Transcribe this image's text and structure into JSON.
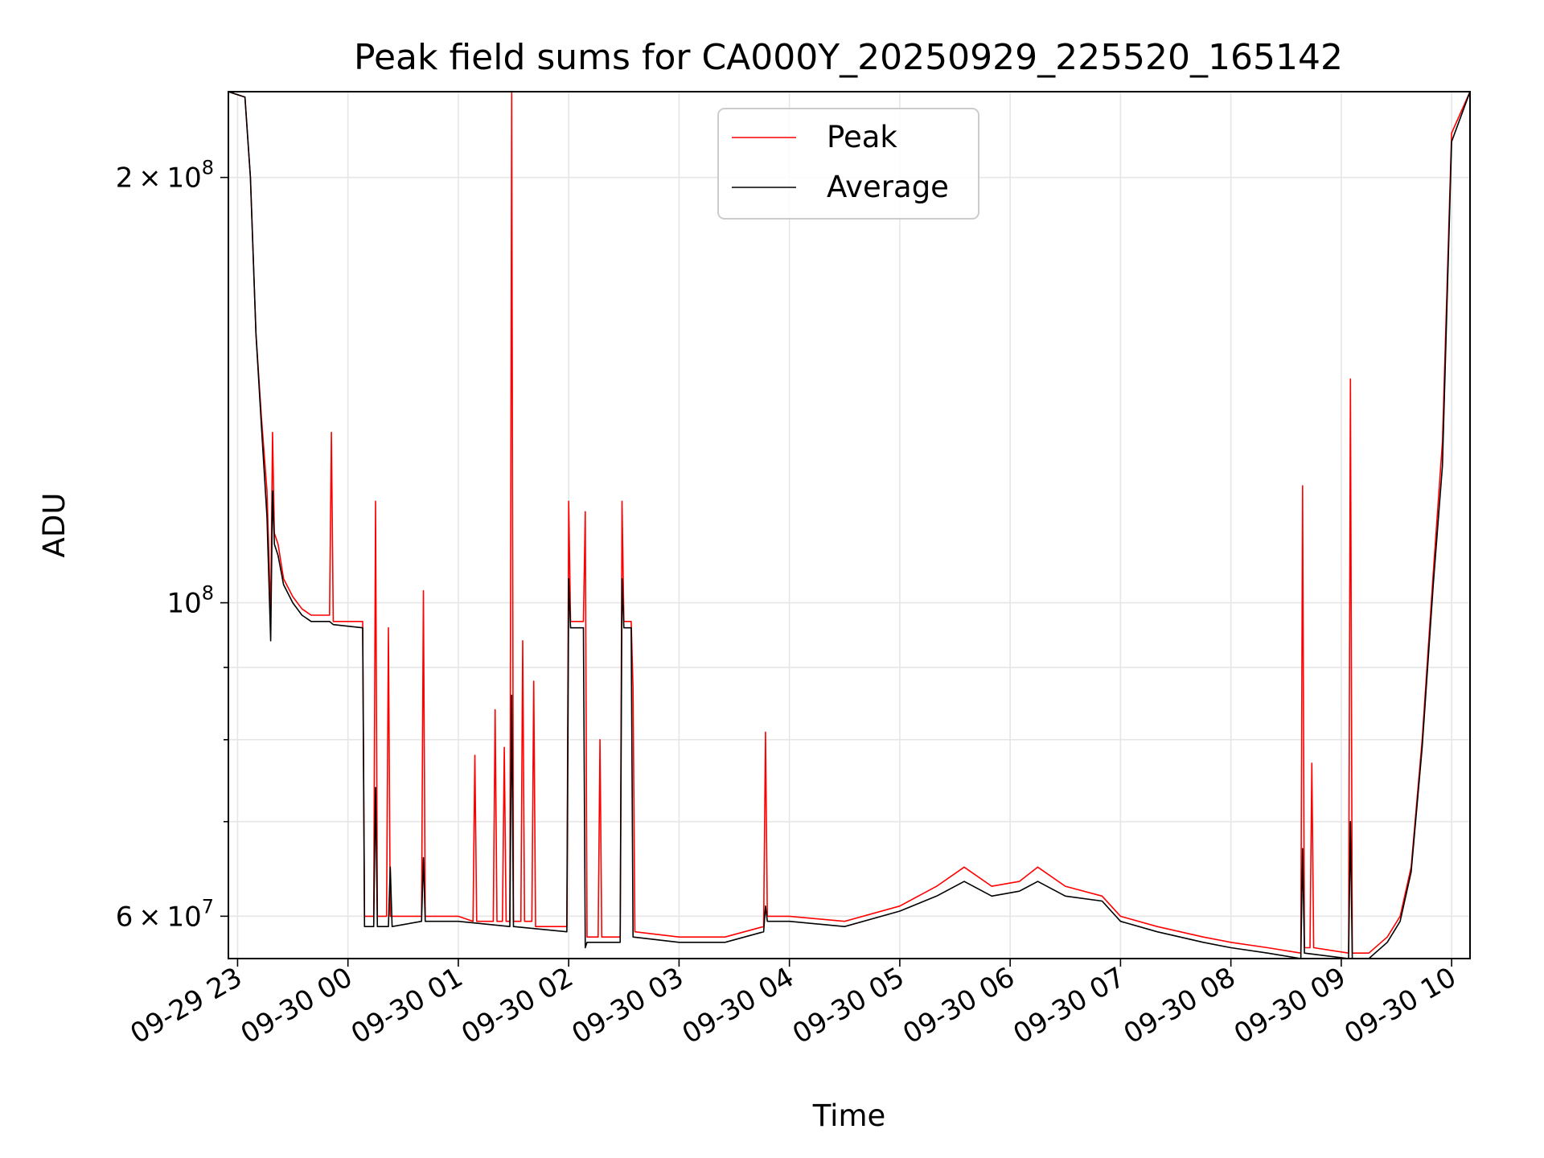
{
  "chart_data": {
    "type": "line",
    "title": "Peak field sums for CA000Y_20250929_225520_165142",
    "xlabel": "Time",
    "ylabel": "ADU",
    "yscale": "log",
    "grid": true,
    "legend_position": "top-center",
    "xlim": [
      "2025-09-29 22:55",
      "2025-09-30 10:10"
    ],
    "ylim": [
      56000000,
      230000000
    ],
    "x_ticks": [
      {
        "t": "2025-09-29 23:00",
        "label": "09-29 23"
      },
      {
        "t": "2025-09-30 00:00",
        "label": "09-30 00"
      },
      {
        "t": "2025-09-30 01:00",
        "label": "09-30 01"
      },
      {
        "t": "2025-09-30 02:00",
        "label": "09-30 02"
      },
      {
        "t": "2025-09-30 03:00",
        "label": "09-30 03"
      },
      {
        "t": "2025-09-30 04:00",
        "label": "09-30 04"
      },
      {
        "t": "2025-09-30 05:00",
        "label": "09-30 05"
      },
      {
        "t": "2025-09-30 06:00",
        "label": "09-30 06"
      },
      {
        "t": "2025-09-30 07:00",
        "label": "09-30 07"
      },
      {
        "t": "2025-09-30 08:00",
        "label": "09-30 08"
      },
      {
        "t": "2025-09-30 09:00",
        "label": "09-30 09"
      },
      {
        "t": "2025-09-30 10:00",
        "label": "09-30 10"
      }
    ],
    "y_major_ticks": [
      {
        "value": 60000000,
        "mantissa": "6",
        "exp": "7",
        "label_type": "mult"
      },
      {
        "value": 100000000,
        "mantissa": "10",
        "exp": "8",
        "label_type": "pow"
      },
      {
        "value": 200000000,
        "mantissa": "2",
        "exp": "8",
        "label_type": "mult"
      }
    ],
    "y_minor_ticks": [
      70000000,
      80000000,
      90000000
    ],
    "series": [
      {
        "name": "Peak",
        "color": "#ff0000",
        "points": [
          [
            "2025-09-29 22:55",
            230000000
          ],
          [
            "2025-09-29 23:04",
            228000000
          ],
          [
            "2025-09-29 23:07",
            200000000
          ],
          [
            "2025-09-29 23:10",
            155000000
          ],
          [
            "2025-09-29 23:13",
            135000000
          ],
          [
            "2025-09-29 23:16",
            120000000
          ],
          [
            "2025-09-29 23:18",
            98000000
          ],
          [
            "2025-09-29 23:19",
            132000000
          ],
          [
            "2025-09-29 23:20",
            112000000
          ],
          [
            "2025-09-29 23:22",
            110000000
          ],
          [
            "2025-09-29 23:25",
            104000000
          ],
          [
            "2025-09-29 23:30",
            101000000
          ],
          [
            "2025-09-29 23:35",
            99000000
          ],
          [
            "2025-09-29 23:40",
            98000000
          ],
          [
            "2025-09-29 23:50",
            98000000
          ],
          [
            "2025-09-29 23:51",
            132000000
          ],
          [
            "2025-09-29 23:52",
            97000000
          ],
          [
            "2025-09-30 00:08",
            97000000
          ],
          [
            "2025-09-30 00:09",
            60000000
          ],
          [
            "2025-09-30 00:14",
            60000000
          ],
          [
            "2025-09-30 00:15",
            118000000
          ],
          [
            "2025-09-30 00:16",
            60000000
          ],
          [
            "2025-09-30 00:21",
            60000000
          ],
          [
            "2025-09-30 00:22",
            96000000
          ],
          [
            "2025-09-30 00:23",
            60000000
          ],
          [
            "2025-09-30 00:40",
            60000000
          ],
          [
            "2025-09-30 00:41",
            102000000
          ],
          [
            "2025-09-30 00:42",
            60000000
          ],
          [
            "2025-09-30 01:00",
            60000000
          ],
          [
            "2025-09-30 01:08",
            59500000
          ],
          [
            "2025-09-30 01:09",
            78000000
          ],
          [
            "2025-09-30 01:10",
            59500000
          ],
          [
            "2025-09-30 01:19",
            59500000
          ],
          [
            "2025-09-30 01:20",
            84000000
          ],
          [
            "2025-09-30 01:21",
            59500000
          ],
          [
            "2025-09-30 01:24",
            59500000
          ],
          [
            "2025-09-30 01:25",
            79000000
          ],
          [
            "2025-09-30 01:26",
            59500000
          ],
          [
            "2025-09-30 01:28",
            59500000
          ],
          [
            "2025-09-30 01:29",
            230000000
          ],
          [
            "2025-09-30 01:30",
            59500000
          ],
          [
            "2025-09-30 01:34",
            59500000
          ],
          [
            "2025-09-30 01:35",
            94000000
          ],
          [
            "2025-09-30 01:36",
            59500000
          ],
          [
            "2025-09-30 01:40",
            59500000
          ],
          [
            "2025-09-30 01:41",
            88000000
          ],
          [
            "2025-09-30 01:42",
            59000000
          ],
          [
            "2025-09-30 01:59",
            59000000
          ],
          [
            "2025-09-30 02:00",
            118000000
          ],
          [
            "2025-09-30 02:01",
            97000000
          ],
          [
            "2025-09-30 02:08",
            97000000
          ],
          [
            "2025-09-30 02:09",
            116000000
          ],
          [
            "2025-09-30 02:10",
            58000000
          ],
          [
            "2025-09-30 02:16",
            58000000
          ],
          [
            "2025-09-30 02:17",
            80000000
          ],
          [
            "2025-09-30 02:18",
            58000000
          ],
          [
            "2025-09-30 02:28",
            58000000
          ],
          [
            "2025-09-30 02:29",
            118000000
          ],
          [
            "2025-09-30 02:30",
            97000000
          ],
          [
            "2025-09-30 02:34",
            97000000
          ],
          [
            "2025-09-30 02:35",
            87000000
          ],
          [
            "2025-09-30 02:36",
            58500000
          ],
          [
            "2025-09-30 03:00",
            58000000
          ],
          [
            "2025-09-30 03:25",
            58000000
          ],
          [
            "2025-09-30 03:46",
            59000000
          ],
          [
            "2025-09-30 03:47",
            81000000
          ],
          [
            "2025-09-30 03:48",
            60000000
          ],
          [
            "2025-09-30 04:00",
            60000000
          ],
          [
            "2025-09-30 04:30",
            59500000
          ],
          [
            "2025-09-30 05:00",
            61000000
          ],
          [
            "2025-09-30 05:20",
            63000000
          ],
          [
            "2025-09-30 05:35",
            65000000
          ],
          [
            "2025-09-30 05:50",
            63000000
          ],
          [
            "2025-09-30 06:05",
            63500000
          ],
          [
            "2025-09-30 06:15",
            65000000
          ],
          [
            "2025-09-30 06:30",
            63000000
          ],
          [
            "2025-09-30 06:50",
            62000000
          ],
          [
            "2025-09-30 07:00",
            60000000
          ],
          [
            "2025-09-30 07:20",
            59000000
          ],
          [
            "2025-09-30 07:45",
            58000000
          ],
          [
            "2025-09-30 08:00",
            57500000
          ],
          [
            "2025-09-30 08:20",
            57000000
          ],
          [
            "2025-09-30 08:38",
            56500000
          ],
          [
            "2025-09-30 08:39",
            121000000
          ],
          [
            "2025-09-30 08:40",
            57000000
          ],
          [
            "2025-09-30 08:43",
            57000000
          ],
          [
            "2025-09-30 08:44",
            77000000
          ],
          [
            "2025-09-30 08:45",
            57000000
          ],
          [
            "2025-09-30 09:04",
            56500000
          ],
          [
            "2025-09-30 09:05",
            144000000
          ],
          [
            "2025-09-30 09:06",
            56500000
          ],
          [
            "2025-09-30 09:15",
            56500000
          ],
          [
            "2025-09-30 09:25",
            58000000
          ],
          [
            "2025-09-30 09:32",
            60000000
          ],
          [
            "2025-09-30 09:38",
            65000000
          ],
          [
            "2025-09-30 09:44",
            80000000
          ],
          [
            "2025-09-30 09:50",
            105000000
          ],
          [
            "2025-09-30 09:55",
            130000000
          ],
          [
            "2025-09-30 10:00",
            215000000
          ],
          [
            "2025-09-30 10:10",
            230000000
          ]
        ]
      },
      {
        "name": "Average",
        "color": "#000000",
        "points": [
          [
            "2025-09-29 22:55",
            230000000
          ],
          [
            "2025-09-29 23:04",
            228000000
          ],
          [
            "2025-09-29 23:07",
            200000000
          ],
          [
            "2025-09-29 23:10",
            155000000
          ],
          [
            "2025-09-29 23:13",
            133000000
          ],
          [
            "2025-09-29 23:16",
            115000000
          ],
          [
            "2025-09-29 23:18",
            94000000
          ],
          [
            "2025-09-29 23:19",
            120000000
          ],
          [
            "2025-09-29 23:20",
            110000000
          ],
          [
            "2025-09-29 23:22",
            108000000
          ],
          [
            "2025-09-29 23:25",
            103000000
          ],
          [
            "2025-09-29 23:30",
            100000000
          ],
          [
            "2025-09-29 23:35",
            98000000
          ],
          [
            "2025-09-29 23:40",
            97000000
          ],
          [
            "2025-09-29 23:50",
            97000000
          ],
          [
            "2025-09-29 23:52",
            96500000
          ],
          [
            "2025-09-30 00:08",
            96000000
          ],
          [
            "2025-09-30 00:09",
            59000000
          ],
          [
            "2025-09-30 00:14",
            59000000
          ],
          [
            "2025-09-30 00:15",
            74000000
          ],
          [
            "2025-09-30 00:16",
            59000000
          ],
          [
            "2025-09-30 00:22",
            59000000
          ],
          [
            "2025-09-30 00:23",
            65000000
          ],
          [
            "2025-09-30 00:24",
            59000000
          ],
          [
            "2025-09-30 00:40",
            59500000
          ],
          [
            "2025-09-30 00:41",
            66000000
          ],
          [
            "2025-09-30 00:42",
            59500000
          ],
          [
            "2025-09-30 01:00",
            59500000
          ],
          [
            "2025-09-30 01:28",
            59000000
          ],
          [
            "2025-09-30 01:29",
            86000000
          ],
          [
            "2025-09-30 01:30",
            59000000
          ],
          [
            "2025-09-30 01:59",
            58500000
          ],
          [
            "2025-09-30 02:00",
            104000000
          ],
          [
            "2025-09-30 02:01",
            96000000
          ],
          [
            "2025-09-30 02:08",
            96000000
          ],
          [
            "2025-09-30 02:09",
            57000000
          ],
          [
            "2025-09-30 02:10",
            57500000
          ],
          [
            "2025-09-30 02:28",
            57500000
          ],
          [
            "2025-09-30 02:29",
            104000000
          ],
          [
            "2025-09-30 02:30",
            96000000
          ],
          [
            "2025-09-30 02:34",
            96000000
          ],
          [
            "2025-09-30 02:35",
            58000000
          ],
          [
            "2025-09-30 03:00",
            57500000
          ],
          [
            "2025-09-30 03:25",
            57500000
          ],
          [
            "2025-09-30 03:46",
            58500000
          ],
          [
            "2025-09-30 03:47",
            61000000
          ],
          [
            "2025-09-30 03:48",
            59500000
          ],
          [
            "2025-09-30 04:00",
            59500000
          ],
          [
            "2025-09-30 04:30",
            59000000
          ],
          [
            "2025-09-30 05:00",
            60500000
          ],
          [
            "2025-09-30 05:20",
            62000000
          ],
          [
            "2025-09-30 05:35",
            63500000
          ],
          [
            "2025-09-30 05:50",
            62000000
          ],
          [
            "2025-09-30 06:05",
            62500000
          ],
          [
            "2025-09-30 06:15",
            63500000
          ],
          [
            "2025-09-30 06:30",
            62000000
          ],
          [
            "2025-09-30 06:50",
            61500000
          ],
          [
            "2025-09-30 07:00",
            59500000
          ],
          [
            "2025-09-30 07:20",
            58500000
          ],
          [
            "2025-09-30 07:45",
            57500000
          ],
          [
            "2025-09-30 08:00",
            57000000
          ],
          [
            "2025-09-30 08:20",
            56500000
          ],
          [
            "2025-09-30 08:38",
            56000000
          ],
          [
            "2025-09-30 08:39",
            67000000
          ],
          [
            "2025-09-30 08:40",
            56500000
          ],
          [
            "2025-09-30 09:04",
            56000000
          ],
          [
            "2025-09-30 09:05",
            70000000
          ],
          [
            "2025-09-30 09:06",
            56000000
          ],
          [
            "2025-09-30 09:15",
            56000000
          ],
          [
            "2025-09-30 09:25",
            57500000
          ],
          [
            "2025-09-30 09:32",
            59500000
          ],
          [
            "2025-09-30 09:38",
            64500000
          ],
          [
            "2025-09-30 09:44",
            79000000
          ],
          [
            "2025-09-30 09:50",
            103000000
          ],
          [
            "2025-09-30 09:55",
            125000000
          ],
          [
            "2025-09-30 10:00",
            212000000
          ],
          [
            "2025-09-30 10:10",
            230000000
          ]
        ]
      }
    ]
  }
}
